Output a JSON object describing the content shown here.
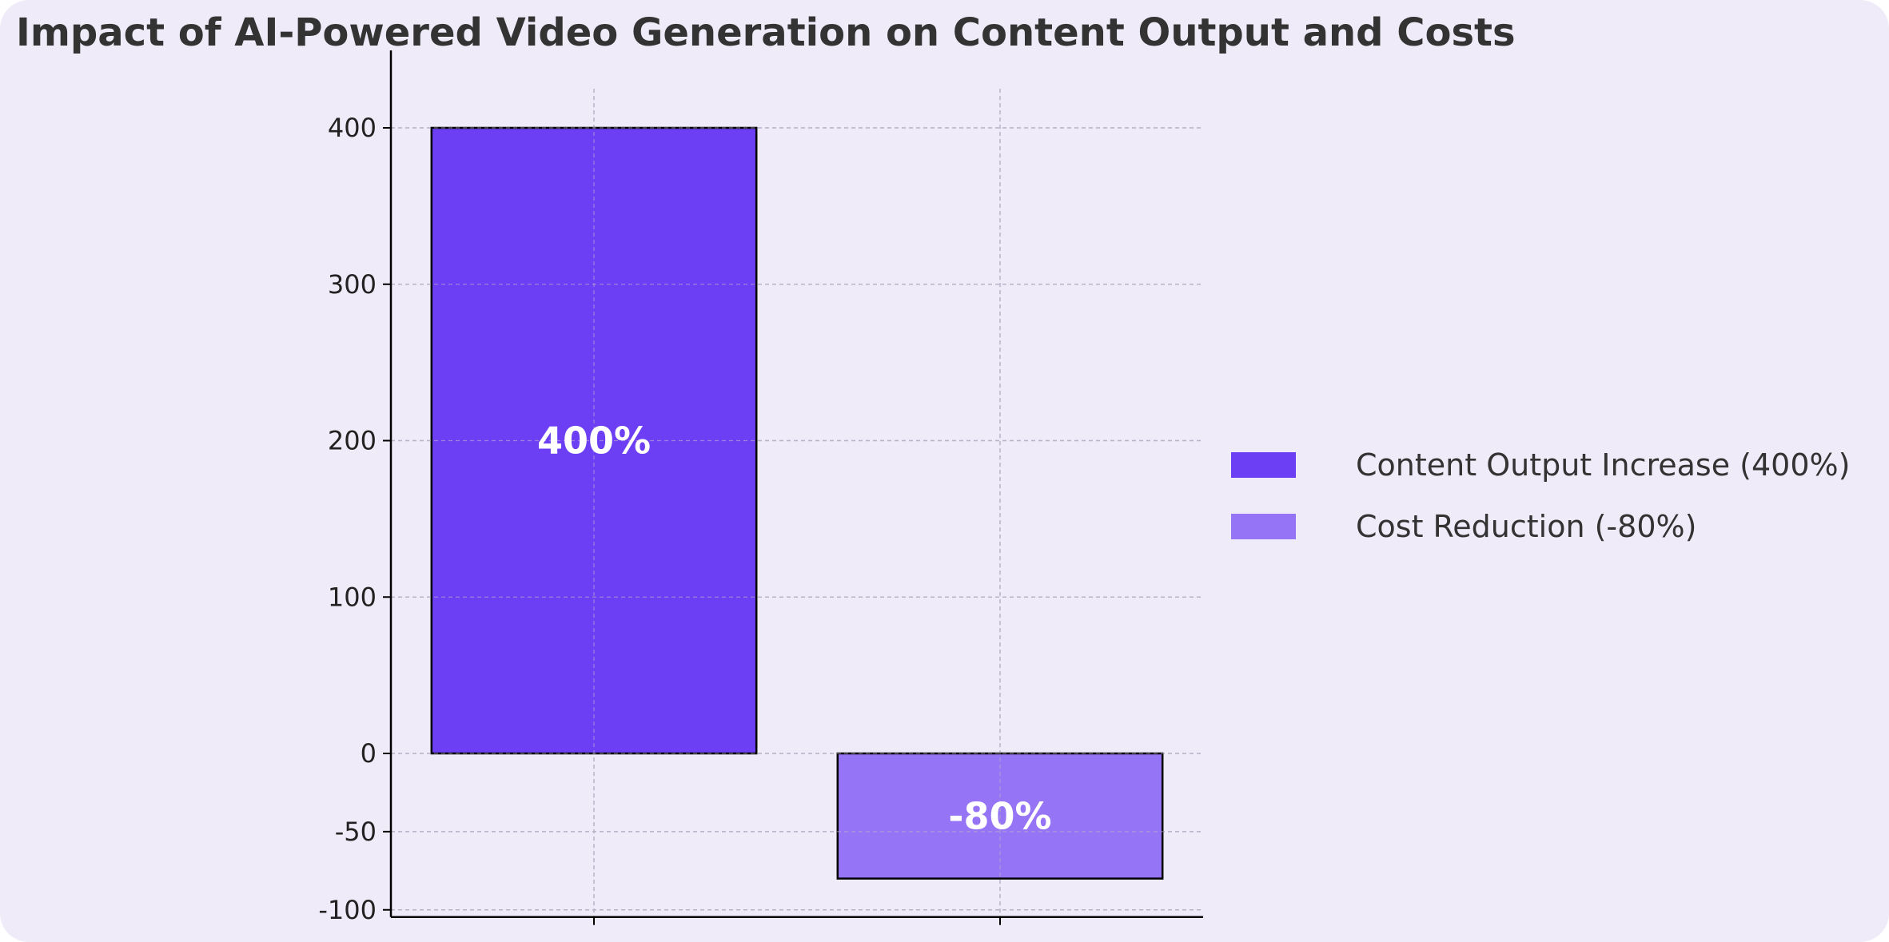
{
  "chart_data": {
    "type": "bar",
    "title": "Impact of AI-Powered Video Generation on Content Output and Costs",
    "xlabel": "",
    "ylabel": "",
    "categories": [
      "Content Output Increase (400%)",
      "Cost Reduction (-80%)"
    ],
    "values": [
      400,
      -80
    ],
    "data_labels": [
      "400%",
      "-80%"
    ],
    "colors": [
      "#6c3ef4",
      "#9575f5"
    ],
    "ylim": [
      -100,
      425
    ],
    "yticks": [
      -100,
      -50,
      0,
      100,
      200,
      300,
      400
    ],
    "ytick_labels": [
      "-100",
      "-50",
      "0",
      "100",
      "200",
      "300",
      "400"
    ],
    "grid": true,
    "legend_position": "right",
    "legend": [
      {
        "label": "Content Output Increase (400%)",
        "color": "#6c3ef4"
      },
      {
        "label": "Cost Reduction (-80%)",
        "color": "#9575f5"
      }
    ]
  }
}
